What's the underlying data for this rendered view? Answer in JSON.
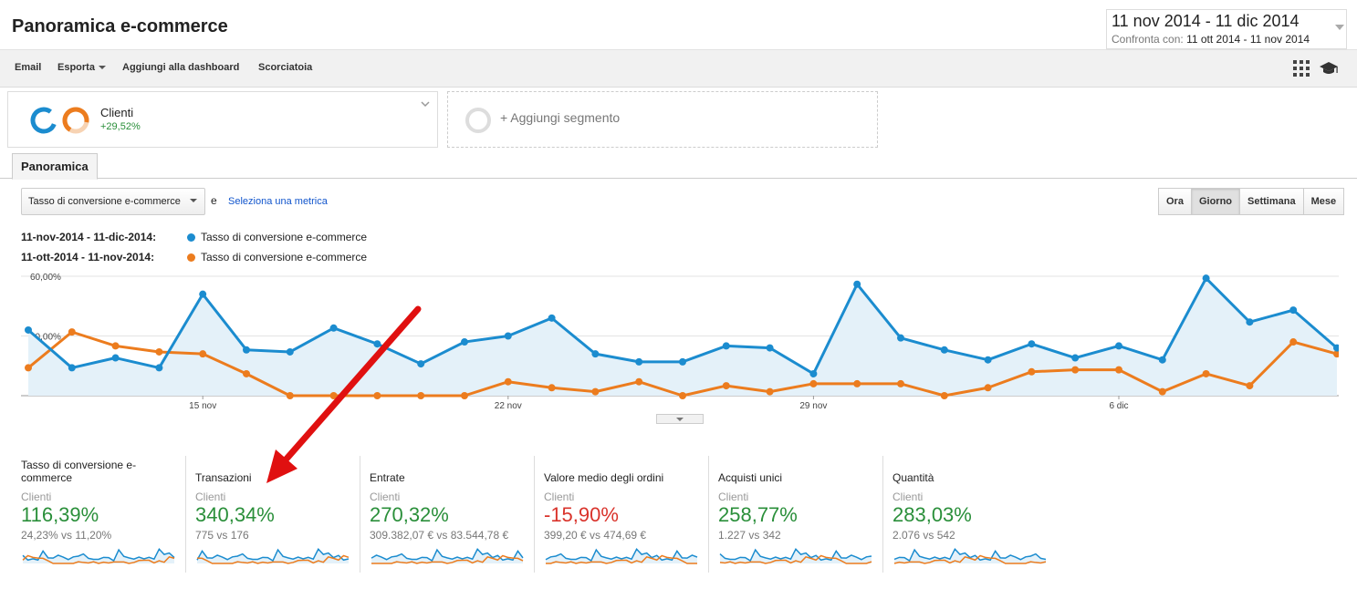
{
  "header": {
    "title": "Panoramica e-commerce",
    "date_range": "11 nov 2014 - 11 dic 2014",
    "compare_label": "Confronta con:",
    "compare_range": "11 ott 2014 - 11 nov 2014"
  },
  "toolbar": {
    "email": "Email",
    "export": "Esporta",
    "add_dashboard": "Aggiungi alla dashboard",
    "shortcut": "Scorciatoia"
  },
  "segments": {
    "seg1_name": "Clienti",
    "seg1_delta": "+29,52%",
    "add_segment": "+ Aggiungi segmento"
  },
  "tabs": {
    "overview": "Panoramica"
  },
  "controls": {
    "metric": "Tasso di conversione e-commerce",
    "and": "e",
    "select_metric": "Seleziona una metrica",
    "periods": [
      "Ora",
      "Giorno",
      "Settimana",
      "Mese"
    ],
    "active_period": "Giorno"
  },
  "colors": {
    "current": "#1b8ccf",
    "previous": "#ec7c1e",
    "positive": "#2a8f3a",
    "negative": "#d9332b",
    "annotation_arrow": "#e01010"
  },
  "legend": {
    "row1_range": "11-nov-2014 - 11-dic-2014:",
    "row1_metric": "Tasso di conversione e-commerce",
    "row2_range": "11-ott-2014 - 11-nov-2014:",
    "row2_metric": "Tasso di conversione e-commerce"
  },
  "chart_data": {
    "type": "line",
    "y_ticks": [
      "60,00%",
      "30,00%"
    ],
    "ylim": [
      0,
      60
    ],
    "x_tick_labels": [
      "15 nov",
      "22 nov",
      "29 nov",
      "6 dic"
    ],
    "x_tick_index": [
      4,
      11,
      18,
      25
    ],
    "series": [
      {
        "name": "11-nov-2014 - 11-dic-2014",
        "values": [
          33,
          14,
          19,
          14,
          51,
          23,
          22,
          34,
          26,
          16,
          27,
          30,
          39,
          21,
          17,
          17,
          25,
          24,
          11,
          56,
          29,
          23,
          18,
          26,
          19,
          25,
          18,
          59,
          37,
          43,
          24
        ]
      },
      {
        "name": "11-ott-2014 - 11-nov-2014",
        "values": [
          14,
          32,
          25,
          22,
          21,
          11,
          0,
          0,
          0,
          0,
          0,
          7,
          4,
          2,
          7,
          0,
          5,
          2,
          6,
          6,
          6,
          0,
          4,
          12,
          13,
          13,
          2,
          11,
          5,
          27,
          21
        ]
      }
    ]
  },
  "scorecards": [
    {
      "title": "Tasso di conversione e-commerce",
      "segment": "Clienti",
      "value": "116,39%",
      "trend": "up",
      "sub": "24,23% vs 11,20%"
    },
    {
      "title": "Transazioni",
      "segment": "Clienti",
      "value": "340,34%",
      "trend": "up",
      "sub": "775 vs 176"
    },
    {
      "title": "Entrate",
      "segment": "Clienti",
      "value": "270,32%",
      "trend": "up",
      "sub": "309.382,07 € vs 83.544,78 €"
    },
    {
      "title": "Valore medio degli ordini",
      "segment": "Clienti",
      "value": "-15,90%",
      "trend": "down",
      "sub": "399,20 € vs 474,69 €"
    },
    {
      "title": "Acquisti unici",
      "segment": "Clienti",
      "value": "258,77%",
      "trend": "up",
      "sub": "1.227 vs 342"
    },
    {
      "title": "Quantità",
      "segment": "Clienti",
      "value": "283,03%",
      "trend": "up",
      "sub": "2.076 vs 542"
    }
  ]
}
